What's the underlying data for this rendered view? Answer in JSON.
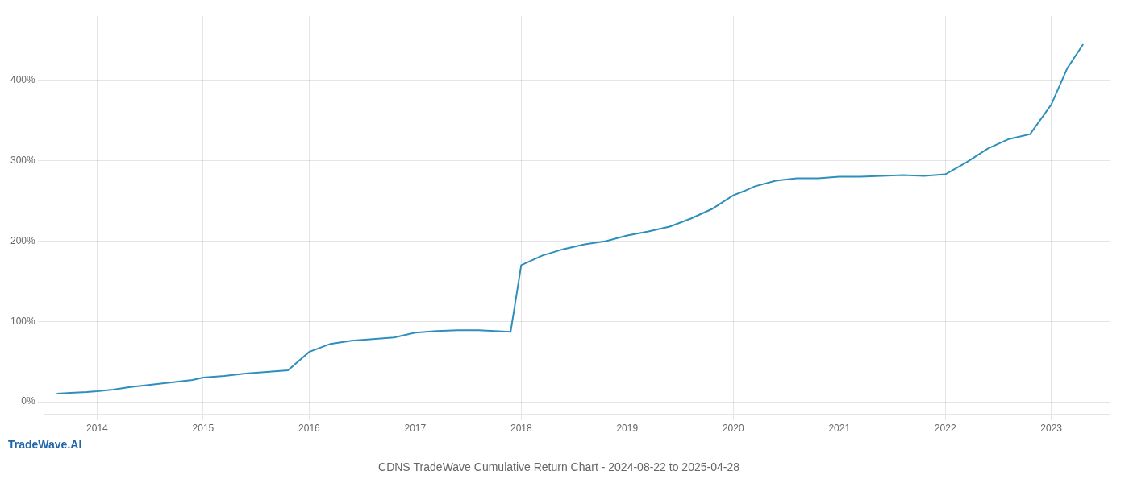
{
  "chart_data": {
    "type": "line",
    "title": "CDNS TradeWave Cumulative Return Chart - 2024-08-22 to 2025-04-28",
    "annotations": [
      {
        "text": "TradeWave.AI",
        "color": "#2266aa"
      }
    ],
    "color": "#2e8fbd",
    "x": [
      2013.62,
      2013.75,
      2013.9,
      2014.0,
      2014.15,
      2014.3,
      2014.5,
      2014.7,
      2014.9,
      2015.0,
      2015.2,
      2015.4,
      2015.6,
      2015.8,
      2016.0,
      2016.1,
      2016.2,
      2016.4,
      2016.6,
      2016.8,
      2017.0,
      2017.2,
      2017.4,
      2017.6,
      2017.75,
      2017.9,
      2018.0,
      2018.1,
      2018.2,
      2018.4,
      2018.6,
      2018.8,
      2019.0,
      2019.2,
      2019.4,
      2019.6,
      2019.8,
      2020.0,
      2020.1,
      2020.2,
      2020.4,
      2020.6,
      2020.8,
      2021.0,
      2021.2,
      2021.4,
      2021.6,
      2021.8,
      2022.0,
      2022.2,
      2022.4,
      2022.6,
      2022.8,
      2023.0,
      2023.15,
      2023.3
    ],
    "values": [
      10,
      11,
      12,
      13,
      15,
      18,
      21,
      24,
      27,
      30,
      32,
      35,
      37,
      39,
      62,
      67,
      72,
      76,
      78,
      80,
      86,
      88,
      89,
      89,
      88,
      87,
      170,
      176,
      182,
      190,
      196,
      200,
      207,
      212,
      218,
      228,
      240,
      257,
      262,
      268,
      275,
      278,
      278,
      280,
      280,
      281,
      282,
      281,
      283,
      298,
      315,
      327,
      333,
      370,
      415,
      445
    ],
    "xlim": [
      2013.5,
      2023.55
    ],
    "xticks": [
      2014,
      2015,
      2016,
      2017,
      2018,
      2019,
      2020,
      2021,
      2022,
      2023
    ],
    "ylim": [
      -15,
      480
    ],
    "yticks": [
      {
        "value": 0,
        "label": "0%"
      },
      {
        "value": 100,
        "label": "100%"
      },
      {
        "value": 200,
        "label": "200%"
      },
      {
        "value": 300,
        "label": "300%"
      },
      {
        "value": 400,
        "label": "400%"
      }
    ],
    "grid": true
  }
}
